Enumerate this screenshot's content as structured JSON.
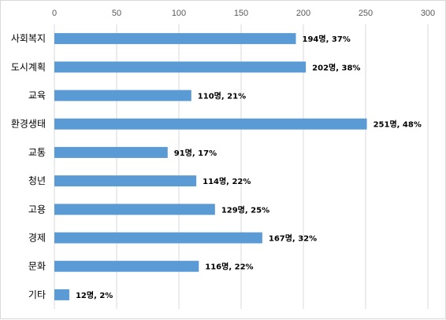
{
  "chart_data": {
    "type": "bar",
    "orientation": "horizontal",
    "categories": [
      "사회복지",
      "도시계획",
      "교육",
      "환경생태",
      "교통",
      "청년",
      "고용",
      "경제",
      "문화",
      "기타"
    ],
    "values": [
      194,
      202,
      110,
      251,
      91,
      114,
      129,
      167,
      116,
      12
    ],
    "data_labels": [
      "194명, 37%",
      "202명, 38%",
      "110명, 21%",
      "251명, 48%",
      "91명, 17%",
      "114명, 22%",
      "129명, 25%",
      "167명, 32%",
      "116명, 22%",
      "12명, 2%"
    ],
    "xlim": [
      0,
      300
    ],
    "x_ticks": [
      "0",
      "50",
      "100",
      "150",
      "200",
      "250",
      "300"
    ],
    "x_axis_position": "top",
    "grid": true,
    "legend": "none",
    "bar_color": "#5b9bd5",
    "grid_color": "#d9d9d9"
  }
}
